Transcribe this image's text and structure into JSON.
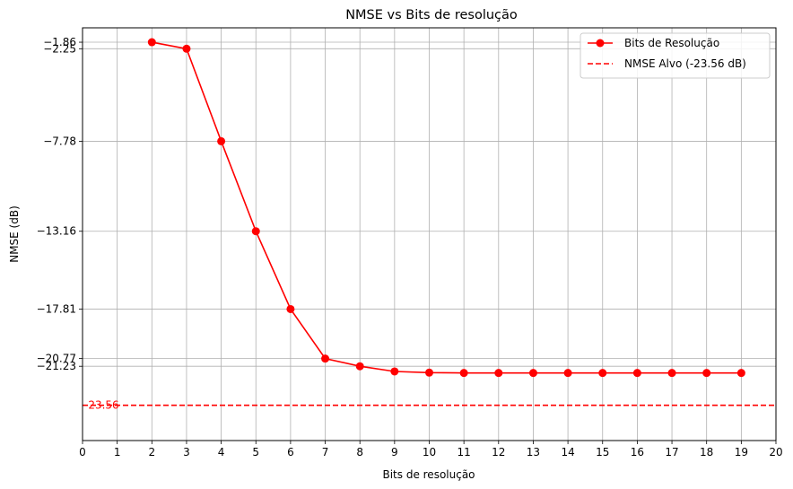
{
  "chart_data": {
    "type": "line",
    "title": "NMSE vs Bits de resolução",
    "xlabel": "Bits de resolução",
    "ylabel": "NMSE (dB)",
    "xlim": [
      0,
      20
    ],
    "ylim": [
      -25.67,
      -1.0
    ],
    "xticks": [
      "0",
      "1",
      "2",
      "3",
      "4",
      "5",
      "6",
      "7",
      "8",
      "9",
      "10",
      "11",
      "12",
      "13",
      "14",
      "15",
      "16",
      "17",
      "18",
      "19",
      "20"
    ],
    "yticks": [
      {
        "value": -1.86,
        "label": "−1.86"
      },
      {
        "value": -2.25,
        "label": "−2.25"
      },
      {
        "value": -7.78,
        "label": "−7.78"
      },
      {
        "value": -13.16,
        "label": "−13.16"
      },
      {
        "value": -17.81,
        "label": "−17.81"
      },
      {
        "value": -20.77,
        "label": "−20.77"
      },
      {
        "value": -21.23,
        "label": "−21.23"
      }
    ],
    "grid": true,
    "legend_position": "top-right",
    "series": [
      {
        "name": "Bits de Resolução",
        "color": "#ff0000",
        "marker": "circle",
        "x": [
          2,
          3,
          4,
          5,
          6,
          7,
          8,
          9,
          10,
          11,
          12,
          13,
          14,
          15,
          16,
          17,
          18,
          19
        ],
        "y": [
          -1.86,
          -2.25,
          -7.78,
          -13.16,
          -17.81,
          -20.77,
          -21.23,
          -21.54,
          -21.61,
          -21.63,
          -21.63,
          -21.63,
          -21.63,
          -21.63,
          -21.63,
          -21.63,
          -21.63,
          -21.63
        ]
      }
    ],
    "target": {
      "name": "NMSE Alvo (-23.56 dB)",
      "value": -23.56,
      "label": "-23.56",
      "color": "#ff0000",
      "style": "dashed"
    }
  }
}
